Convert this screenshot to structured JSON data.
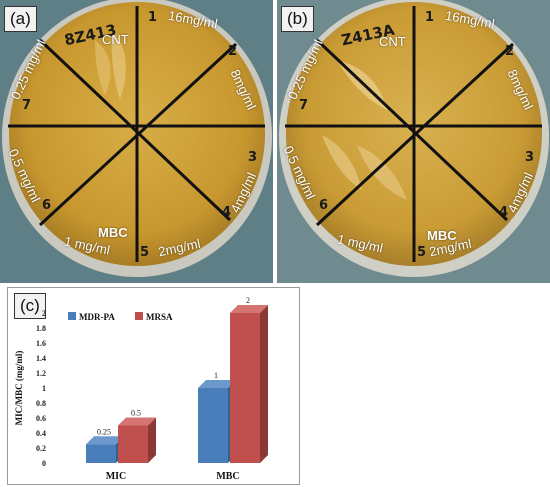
{
  "panels": {
    "a": {
      "label": "(a)",
      "strain_code": "8Z413",
      "control": "CNT",
      "concentrations": [
        "16mg/ml",
        "8mg/ml",
        "4mg/ml",
        "2mg/ml",
        "1 mg/ml",
        "0.5 mg/ml",
        "0.25 mg/ml"
      ],
      "mbc_label": "MBC",
      "sector_marks": [
        "1",
        "2",
        "3",
        "4",
        "5",
        "6",
        "7"
      ]
    },
    "b": {
      "label": "(b)",
      "strain_code": "Z413A",
      "control": "CNT",
      "concentrations": [
        "16mg/ml",
        "8mg/ml",
        "4mg/ml",
        "2mg/ml",
        "1 mg/ml",
        "0.5 mg/ml",
        "0.25 mg/ml"
      ],
      "mbc_label": "MBC",
      "sector_marks": [
        "1",
        "2",
        "3",
        "4",
        "5",
        "6",
        "7"
      ]
    },
    "c": {
      "label": "(c)"
    }
  },
  "colors": {
    "agar": "#d2a63f",
    "mdr_pa": "#4a7ebb",
    "mrsa": "#c0504d"
  },
  "chart_data": {
    "type": "bar",
    "categories": [
      "MIC",
      "MBC"
    ],
    "series": [
      {
        "name": "MDR-PA",
        "values": [
          0.25,
          1
        ]
      },
      {
        "name": "MRSA",
        "values": [
          0.5,
          2
        ]
      }
    ],
    "data_labels": [
      [
        "0.25",
        "1"
      ],
      [
        "0.5",
        "2"
      ]
    ],
    "ylabel": "MIC/MBC (mg/ml)",
    "ylim": [
      0,
      2
    ],
    "yticks": [
      "0",
      "0.2",
      "0.4",
      "0.6",
      "0.8",
      "1",
      "1.2",
      "1.4",
      "1.6",
      "1.8",
      "2"
    ],
    "legend_position": "top-left",
    "grid": false,
    "style": "3d-columns"
  }
}
